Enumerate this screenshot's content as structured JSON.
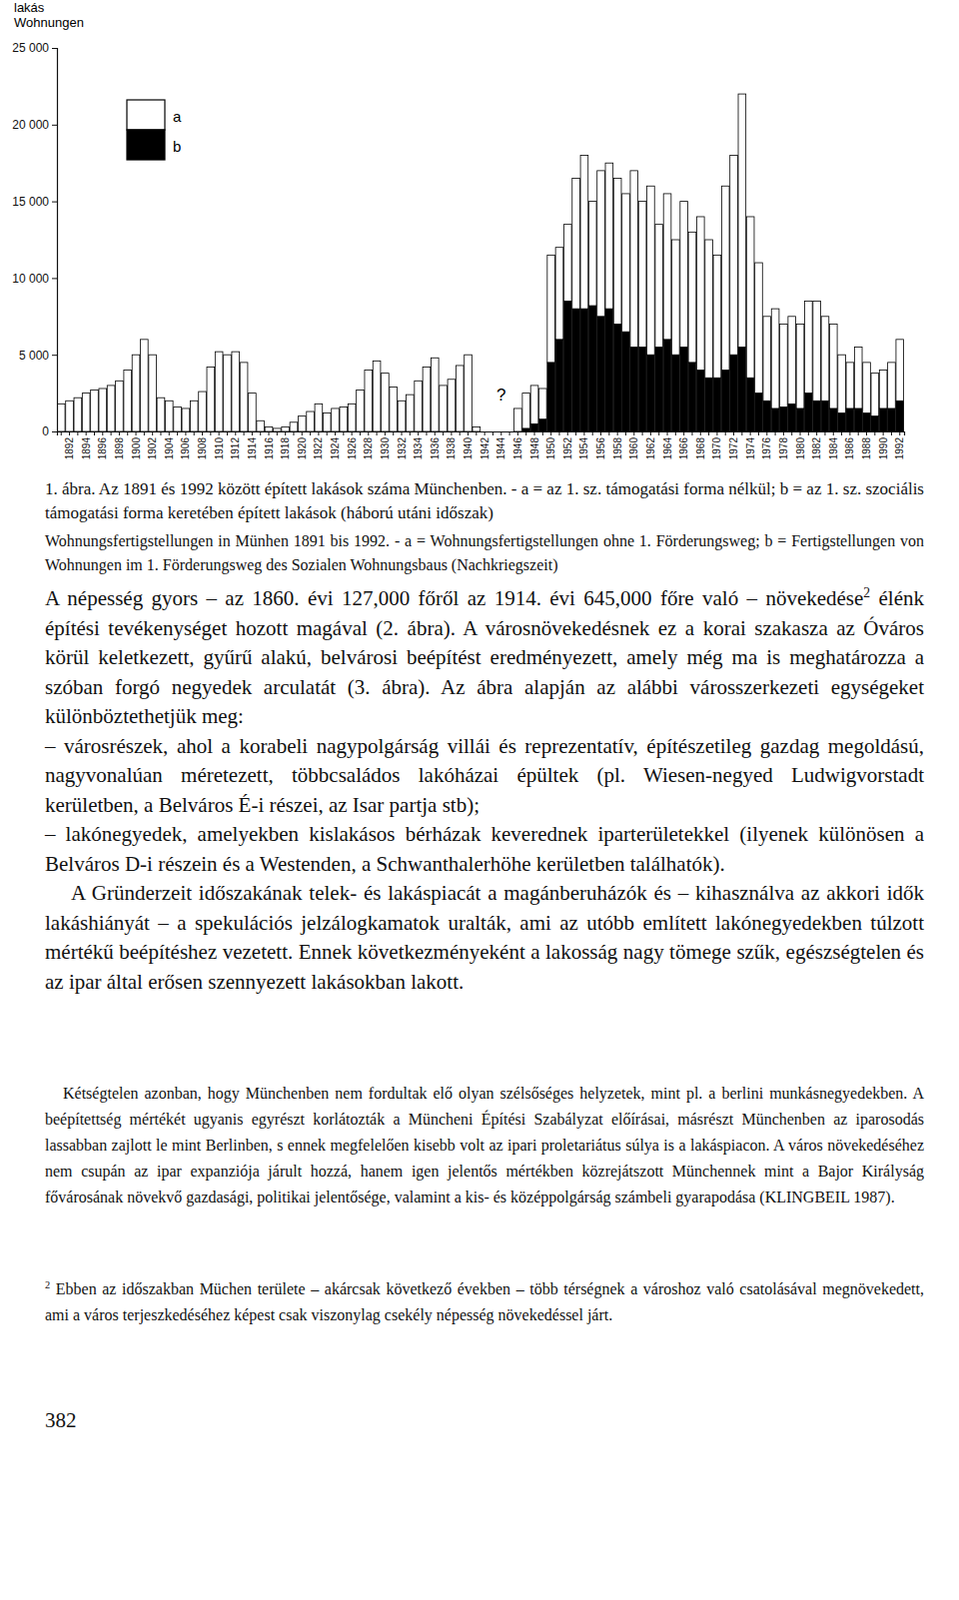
{
  "chart_data": {
    "type": "bar",
    "ylabel_lines": [
      "lakás",
      "Wohnungen"
    ],
    "categories": [
      null,
      "1892",
      null,
      "1894",
      null,
      "1896",
      null,
      "1898",
      null,
      "1900",
      null,
      "1902",
      null,
      "1904",
      null,
      "1906",
      null,
      "1908",
      null,
      "1910",
      null,
      "1912",
      null,
      "1914",
      null,
      "1916",
      null,
      "1918",
      null,
      "1920",
      null,
      "1922",
      null,
      "1924",
      null,
      "1926",
      null,
      "1928",
      null,
      "1930",
      null,
      "1932",
      null,
      "1934",
      null,
      "1936",
      null,
      "1938",
      null,
      "1940",
      null,
      "1942",
      null,
      "1944",
      null,
      "1946",
      null,
      "1948",
      null,
      "1950",
      null,
      "1952",
      null,
      "1954",
      null,
      "1956",
      null,
      "1958",
      null,
      "1960",
      null,
      "1962",
      null,
      "1964",
      null,
      "1966",
      null,
      "1968",
      null,
      "1970",
      null,
      "1972",
      null,
      "1974",
      null,
      "1976",
      null,
      "1978",
      null,
      "1980",
      null,
      "1982",
      null,
      "1984",
      null,
      "1986",
      null,
      "1988",
      null,
      "1990",
      null,
      "1992"
    ],
    "series": [
      {
        "name": "a",
        "color": "#ffffff",
        "values": [
          1800,
          2000,
          2200,
          2500,
          2700,
          2800,
          3000,
          3300,
          4000,
          5000,
          6000,
          5000,
          2200,
          2000,
          1600,
          1500,
          2000,
          2600,
          4200,
          5200,
          5000,
          5200,
          4500,
          2500,
          700,
          300,
          200,
          300,
          600,
          1000,
          1300,
          1800,
          1200,
          1500,
          1600,
          1800,
          2700,
          4000,
          4600,
          3800,
          2900,
          2000,
          2400,
          3300,
          4200,
          4800,
          3000,
          3400,
          4300,
          5000,
          300,
          null,
          null,
          null,
          null,
          1500,
          2300,
          2500,
          2000,
          7000,
          6000,
          5000,
          8500,
          10000,
          6800,
          9500,
          9500,
          9500,
          9000,
          11500,
          9500,
          11000,
          8000,
          9500,
          7500,
          9500,
          8500,
          10000,
          9000,
          8000,
          12000,
          13000,
          16500,
          10500,
          8500,
          5500,
          6500,
          5400,
          5700,
          5500,
          6000,
          6500,
          5500,
          5500,
          3800,
          3000,
          4000,
          3300,
          2800,
          2500,
          3000,
          4000
        ]
      },
      {
        "name": "b",
        "color": "#000000",
        "values": [
          null,
          null,
          null,
          null,
          null,
          null,
          null,
          null,
          null,
          null,
          null,
          null,
          null,
          null,
          null,
          null,
          null,
          null,
          null,
          null,
          null,
          null,
          null,
          null,
          null,
          null,
          null,
          null,
          null,
          null,
          null,
          null,
          null,
          null,
          null,
          null,
          null,
          null,
          null,
          null,
          null,
          null,
          null,
          null,
          null,
          null,
          null,
          null,
          null,
          null,
          null,
          null,
          null,
          null,
          null,
          0,
          200,
          500,
          800,
          4500,
          6000,
          8500,
          8000,
          8000,
          8200,
          7500,
          8000,
          7000,
          6500,
          5500,
          5500,
          5000,
          5500,
          6000,
          5000,
          5500,
          4500,
          4000,
          3500,
          3500,
          4000,
          5000,
          5500,
          3500,
          2500,
          2000,
          1500,
          1600,
          1800,
          1500,
          2500,
          2000,
          2000,
          1500,
          1200,
          1500,
          1500,
          1200,
          1000,
          1500,
          1500,
          2000
        ]
      }
    ],
    "stacked": true,
    "legend": "upper-left",
    "ylim": [
      0,
      25000
    ],
    "yticks": [
      0,
      {
        "value": 5000,
        "label": "5 000"
      },
      {
        "value": 10000,
        "label": "10 000"
      },
      {
        "value": 15000,
        "label": "15 000"
      },
      {
        "value": 20000,
        "label": "20 000"
      },
      {
        "value": 25000,
        "label": "25 000"
      }
    ],
    "annotations": [
      {
        "text": "?",
        "x": "1944",
        "y": 2000
      }
    ]
  },
  "caption": {
    "hu": "1. ábra. Az 1891 és 1992 között épített lakások száma Münchenben. - a = az 1. sz. támogatási forma nélkül; b = az 1. sz. szociális támogatási forma keretében épített lakások (háború utáni időszak)",
    "de": "Wohnungsfertigstellungen in Münhen 1891 bis 1992. - a = Wohnungsfertigstellungen ohne 1. Förderungsweg; b = Fertigstellungen von Wohnungen im 1. Förderungsweg des Sozialen Wohnungsbaus (Nachkriegszeit)"
  },
  "body": [
    {
      "runs": [
        {
          "text": "A népesség gyors – az 1860. évi 127,000 főről az 1914. évi 645,000 főre való – növekedése"
        },
        {
          "sup": "2"
        },
        {
          "text": " élénk építési tevékenységet hozott magával (2. ábra). A városnövekedésnek ez a korai szakasza az Óváros körül keletkezett, gyűrű alakú, belvárosi beépítést eredményezett, amely még ma is meghatározza a szóban forgó negyedek arculatát (3. ábra). Az ábra alapján az alábbi városszerkezeti egységeket különböztethetjük meg:"
        }
      ]
    },
    {
      "runs": [
        {
          "text": "– városrészek, ahol a korabeli nagypolgárság villái és reprezentatív, építészetileg gazdag megoldású, nagyvonalúan méretezett, többcsaládos lakóházai épültek (pl. Wiesen-negyed Ludwigvorstadt kerületben, a Belváros É-i részei, az Isar partja stb);"
        }
      ]
    },
    {
      "runs": [
        {
          "text": "– lakónegyedek, amelyekben kislakásos bérházak keverednek iparterületekkel (ilyenek különösen a Belváros D-i részein és a Westenden, a Schwanthalerhöhe kerületben találhatók)."
        }
      ]
    },
    {
      "runs": [
        {
          "text": "A Gründerzeit időszakának telek- és lakáspiacát a magánberuházók és – kihasználva az akkori idők lakáshiányát – a spekulációs jelzálogkamatok uralták, ami az utóbb említett lakónegyedekben túlzott mértékű beépítéshez vezetett. Ennek következményeként a lakosság nagy tömege szűk, egészségtelen és az ipar által erősen szennyezett lakásokban lakott."
        }
      ]
    }
  ],
  "note": "Kétségtelen azonban, hogy Münchenben nem fordultak elő olyan szélsőséges helyzetek, mint pl. a berlini munkásnegyedekben. A beépítettség mértékét ugyanis egyrészt korlátozták a Müncheni Építési Szabályzat előírásai, másrészt Münchenben az iparosodás lassabban zajlott le mint Berlinben, s ennek megfelelően kisebb volt az ipari proletariátus súlya is a lakáspiacon. A város növekedéséhez nem csupán az ipar expanziója járult hozzá, hanem igen jelentős mértékben közrejátszott Münchennek mint a Bajor Királyság fővárosának növekvő gazdasági, politikai jelentősége, valamint a kis- és középpolgárság számbeli gyarapodása (KLINGBEIL 1987).",
  "footnote": {
    "mark": "2",
    "text": " Ebben az időszakban Müchen területe – akárcsak következő években – több térségnek a városhoz való csatolásával megnövekedett, ami a város terjeszkedéséhez képest csak viszonylag csekély népesség növekedéssel járt."
  },
  "page_number": "382"
}
